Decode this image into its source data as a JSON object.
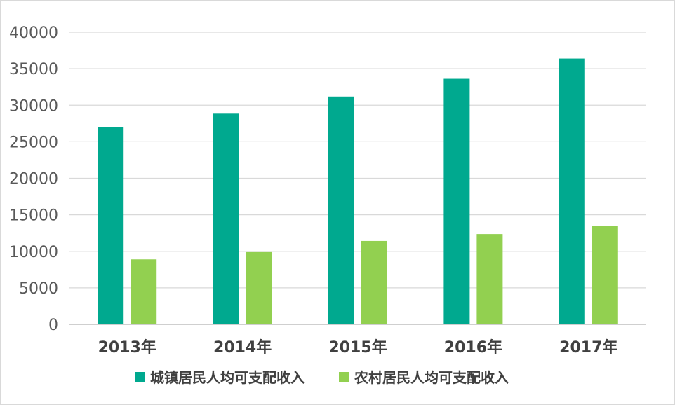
{
  "chart_data": {
    "type": "bar",
    "categories": [
      "2013年",
      "2014年",
      "2015年",
      "2016年",
      "2017年"
    ],
    "series": [
      {
        "name": "城镇居民人均可支配收入",
        "values": [
          26955,
          28844,
          31195,
          33616,
          36396
        ],
        "color": "#00a98f"
      },
      {
        "name": "农村居民人均可支配收入",
        "values": [
          8896,
          9892,
          11422,
          12363,
          13432
        ],
        "color": "#92d050"
      }
    ],
    "ylim": [
      0,
      40000
    ],
    "yticks": [
      "0",
      "5000",
      "10000",
      "15000",
      "20000",
      "25000",
      "30000",
      "35000",
      "40000"
    ],
    "grid": true,
    "legend_position": "bottom"
  }
}
